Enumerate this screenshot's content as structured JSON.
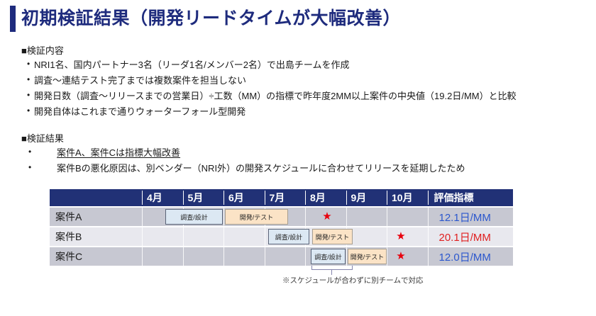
{
  "title": "初期検証結果（開発リードタイムが大幅改善）",
  "content_section": {
    "heading": "■検証内容",
    "bullet_glyph": "•",
    "bullets": [
      "NRI1名、国内パートナー3名（リーダ1名/メンバー2名）で出島チームを作成",
      "調査～連結テスト完了までは複数案件を担当しない",
      "開発日数（調査～リリースまでの営業日）÷工数（MM）の指標で昨年度2MM以上案件の中央値（19.2日/MM）と比較",
      "開発自体はこれまで通りウォーターフォール型開発"
    ]
  },
  "result_section": {
    "heading": "■検証結果",
    "bullet_glyph": "•",
    "bullets": [
      "案件A、案件Cは指標大幅改善",
      "案件Bの悪化原因は、別ベンダー（NRI外）の開発スケジュールに合わせてリリースを延期したため"
    ]
  },
  "chart_data": {
    "type": "table",
    "subtype": "gantt",
    "columns": [
      "",
      "4月",
      "5月",
      "6月",
      "7月",
      "8月",
      "9月",
      "10月",
      "評価指標"
    ],
    "star_marker": "★",
    "baseline_reference": "19.2日/MM",
    "rows": [
      {
        "label": "案件A",
        "bars": [
          {
            "label": "調査/設計",
            "start_month": 4.5,
            "end_month": 6.0
          },
          {
            "label": "開発/テスト",
            "start_month": 6.0,
            "end_month": 7.6
          }
        ],
        "release_month": "8月",
        "metric": "12.1日/MM",
        "metric_status": "improved"
      },
      {
        "label": "案件B",
        "bars": [
          {
            "label": "調査/設計",
            "start_month": 7.1,
            "end_month": 8.1
          },
          {
            "label": "開発/テスト",
            "start_month": 8.2,
            "end_month": 9.2
          }
        ],
        "release_month": "10月",
        "metric": "20.1日/MM",
        "metric_status": "worsened"
      },
      {
        "label": "案件C",
        "bars": [
          {
            "label": "調査/設計",
            "start_month": 8.1,
            "end_month": 9.0
          },
          {
            "label": "開発/テスト",
            "start_month": 9.0,
            "end_month": 10.0
          }
        ],
        "release_month": "10月",
        "metric": "12.0日/MM",
        "metric_status": "improved"
      }
    ]
  },
  "footnote": "※スケジュールが合わずに別チームで対応",
  "colors": {
    "title_navy": "#1e2b7d",
    "table_header_navy": "#213176",
    "row_gray": "#c7c8d2",
    "row_light": "#e8e8ee",
    "survey_bar_fill": "#dce8f3",
    "survey_bar_border": "#5a6478",
    "dev_bar_fill": "#fbe3c6",
    "dev_bar_border": "#a79e90",
    "star_red": "#e8000d",
    "metric_blue": "#2b57cd",
    "metric_red": "#e01f1f"
  }
}
